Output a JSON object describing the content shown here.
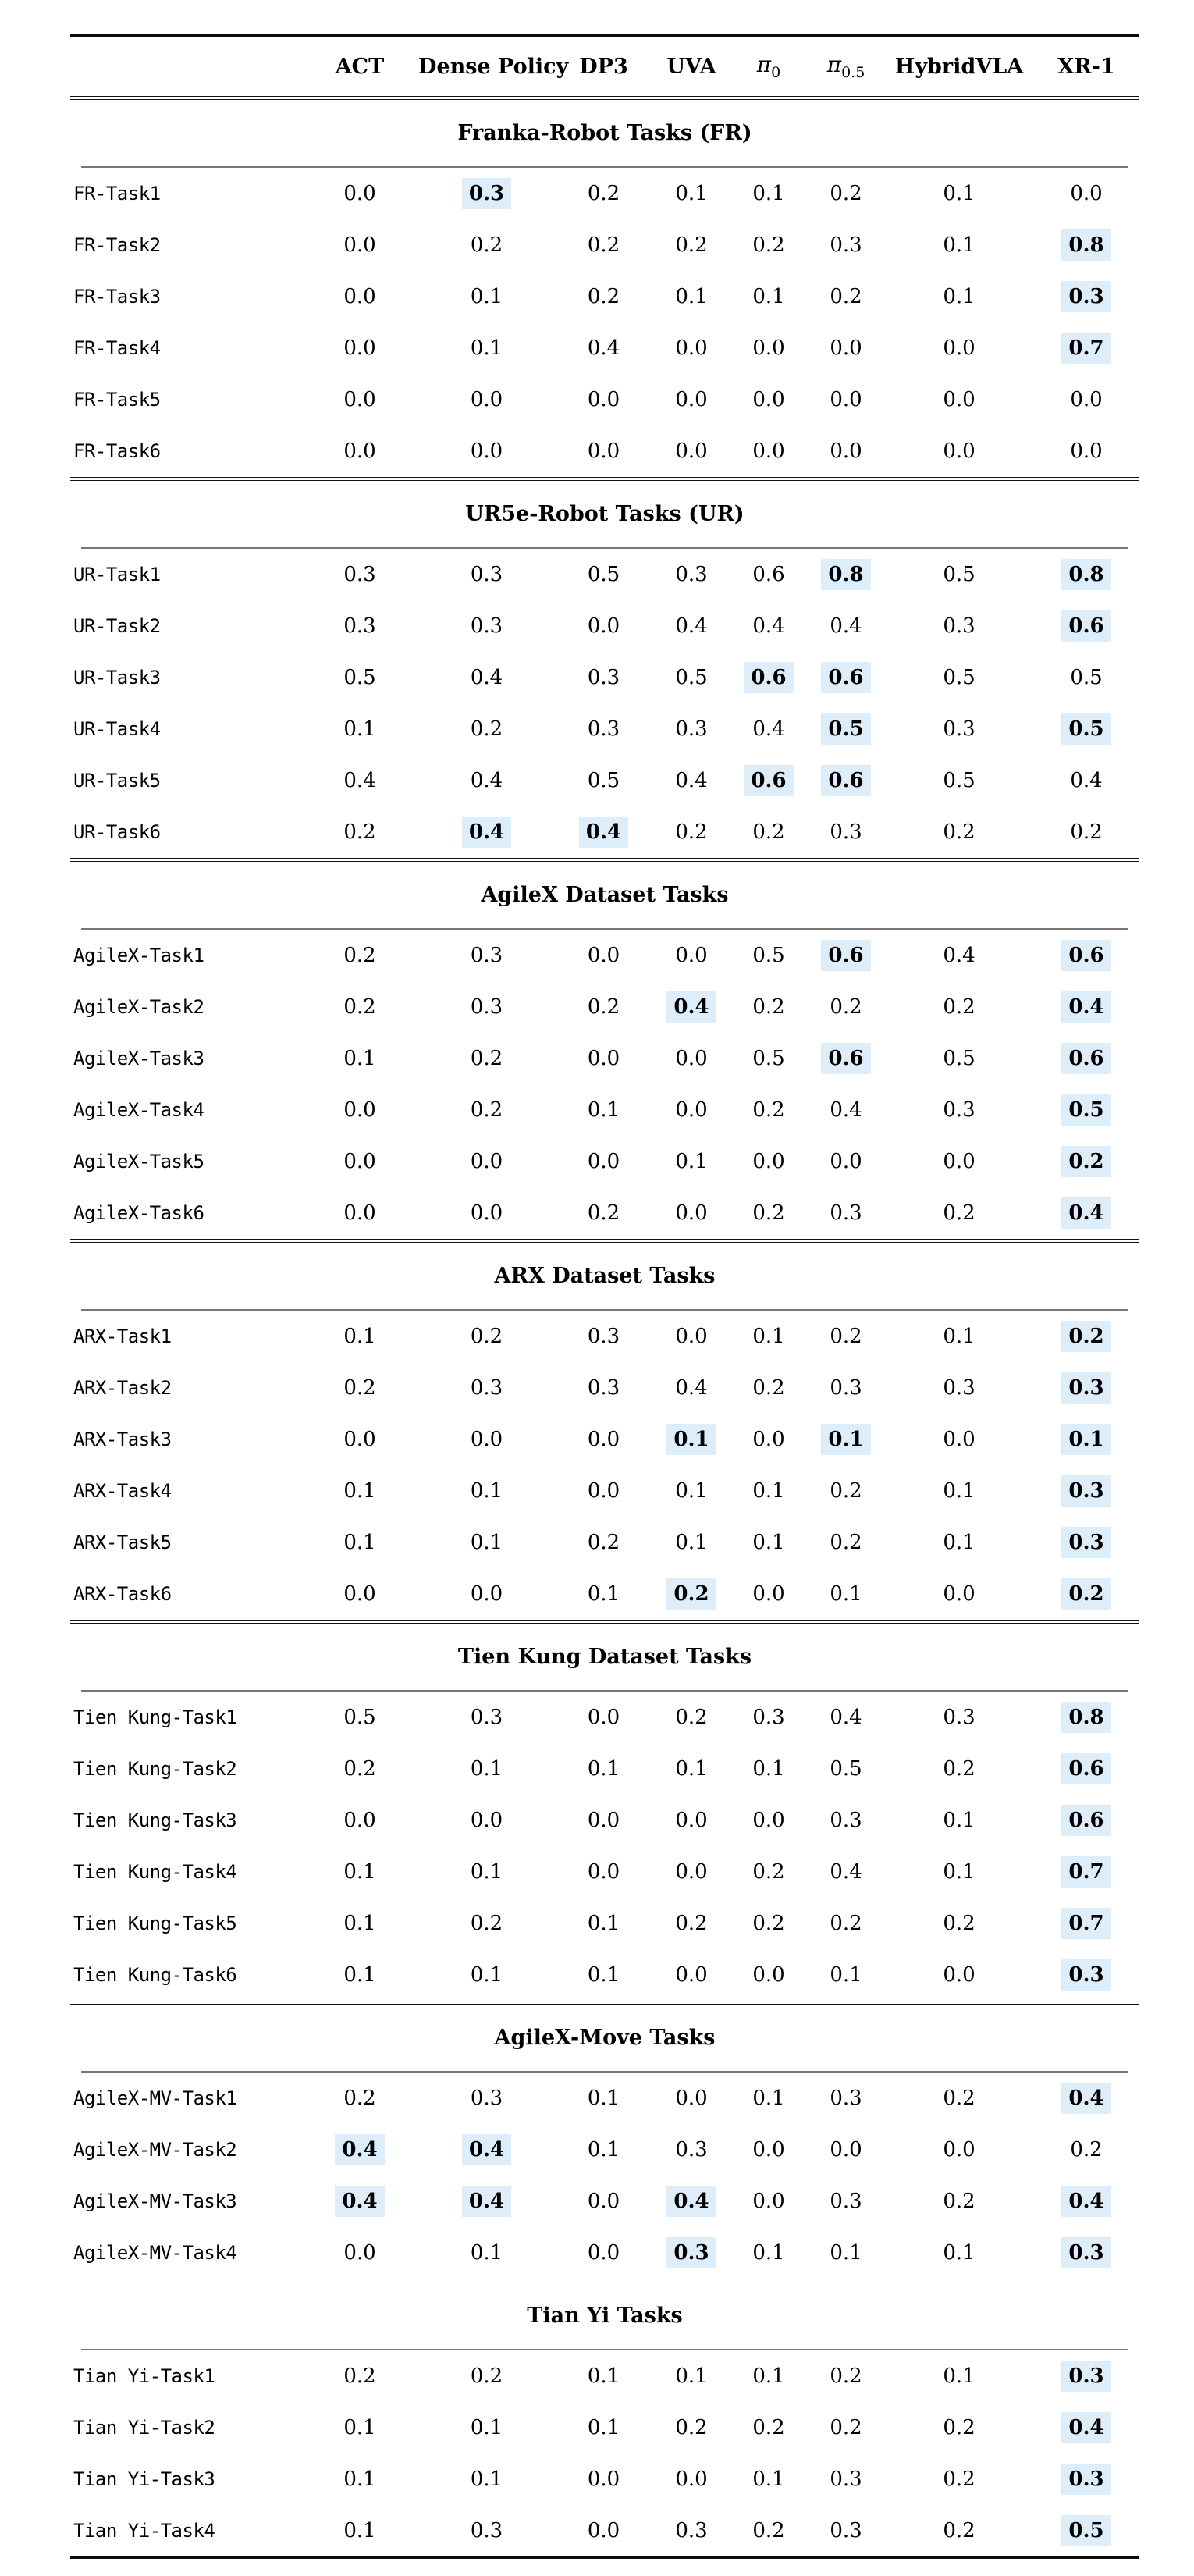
{
  "table": {
    "highlight_color": "#ddeefa",
    "header": {
      "row_label_col": "",
      "columns": [
        {
          "label": "ACT"
        },
        {
          "label": "Dense Policy"
        },
        {
          "label": "DP3"
        },
        {
          "label": "UVA"
        },
        {
          "label": "π",
          "sub": "0"
        },
        {
          "label": "π",
          "sub": "0.5"
        },
        {
          "label": "HybridVLA"
        },
        {
          "label": "XR-1"
        }
      ]
    },
    "sections": [
      {
        "title": "Franka-Robot Tasks (FR)",
        "rows": [
          {
            "task": "FR-Task1",
            "values": [
              "0.0",
              "0.3",
              "0.2",
              "0.1",
              "0.1",
              "0.2",
              "0.1",
              "0.0"
            ],
            "highlights": [
              1
            ]
          },
          {
            "task": "FR-Task2",
            "values": [
              "0.0",
              "0.2",
              "0.2",
              "0.2",
              "0.2",
              "0.3",
              "0.1",
              "0.8"
            ],
            "highlights": [
              7
            ]
          },
          {
            "task": "FR-Task3",
            "values": [
              "0.0",
              "0.1",
              "0.2",
              "0.1",
              "0.1",
              "0.2",
              "0.1",
              "0.3"
            ],
            "highlights": [
              7
            ]
          },
          {
            "task": "FR-Task4",
            "values": [
              "0.0",
              "0.1",
              "0.4",
              "0.0",
              "0.0",
              "0.0",
              "0.0",
              "0.7"
            ],
            "highlights": [
              7
            ]
          },
          {
            "task": "FR-Task5",
            "values": [
              "0.0",
              "0.0",
              "0.0",
              "0.0",
              "0.0",
              "0.0",
              "0.0",
              "0.0"
            ],
            "highlights": []
          },
          {
            "task": "FR-Task6",
            "values": [
              "0.0",
              "0.0",
              "0.0",
              "0.0",
              "0.0",
              "0.0",
              "0.0",
              "0.0"
            ],
            "highlights": []
          }
        ]
      },
      {
        "title": "UR5e-Robot Tasks (UR)",
        "rows": [
          {
            "task": "UR-Task1",
            "values": [
              "0.3",
              "0.3",
              "0.5",
              "0.3",
              "0.6",
              "0.8",
              "0.5",
              "0.8"
            ],
            "highlights": [
              5,
              7
            ]
          },
          {
            "task": "UR-Task2",
            "values": [
              "0.3",
              "0.3",
              "0.0",
              "0.4",
              "0.4",
              "0.4",
              "0.3",
              "0.6"
            ],
            "highlights": [
              7
            ]
          },
          {
            "task": "UR-Task3",
            "values": [
              "0.5",
              "0.4",
              "0.3",
              "0.5",
              "0.6",
              "0.6",
              "0.5",
              "0.5"
            ],
            "highlights": [
              4,
              5
            ]
          },
          {
            "task": "UR-Task4",
            "values": [
              "0.1",
              "0.2",
              "0.3",
              "0.3",
              "0.4",
              "0.5",
              "0.3",
              "0.5"
            ],
            "highlights": [
              5,
              7
            ]
          },
          {
            "task": "UR-Task5",
            "values": [
              "0.4",
              "0.4",
              "0.5",
              "0.4",
              "0.6",
              "0.6",
              "0.5",
              "0.4"
            ],
            "highlights": [
              4,
              5
            ]
          },
          {
            "task": "UR-Task6",
            "values": [
              "0.2",
              "0.4",
              "0.4",
              "0.2",
              "0.2",
              "0.3",
              "0.2",
              "0.2"
            ],
            "highlights": [
              1,
              2
            ]
          }
        ]
      },
      {
        "title": "AgileX Dataset Tasks",
        "rows": [
          {
            "task": "AgileX-Task1",
            "values": [
              "0.2",
              "0.3",
              "0.0",
              "0.0",
              "0.5",
              "0.6",
              "0.4",
              "0.6"
            ],
            "highlights": [
              5,
              7
            ]
          },
          {
            "task": "AgileX-Task2",
            "values": [
              "0.2",
              "0.3",
              "0.2",
              "0.4",
              "0.2",
              "0.2",
              "0.2",
              "0.4"
            ],
            "highlights": [
              3,
              7
            ]
          },
          {
            "task": "AgileX-Task3",
            "values": [
              "0.1",
              "0.2",
              "0.0",
              "0.0",
              "0.5",
              "0.6",
              "0.5",
              "0.6"
            ],
            "highlights": [
              5,
              7
            ]
          },
          {
            "task": "AgileX-Task4",
            "values": [
              "0.0",
              "0.2",
              "0.1",
              "0.0",
              "0.2",
              "0.4",
              "0.3",
              "0.5"
            ],
            "highlights": [
              7
            ]
          },
          {
            "task": "AgileX-Task5",
            "values": [
              "0.0",
              "0.0",
              "0.0",
              "0.1",
              "0.0",
              "0.0",
              "0.0",
              "0.2"
            ],
            "highlights": [
              7
            ]
          },
          {
            "task": "AgileX-Task6",
            "values": [
              "0.0",
              "0.0",
              "0.2",
              "0.0",
              "0.2",
              "0.3",
              "0.2",
              "0.4"
            ],
            "highlights": [
              7
            ]
          }
        ]
      },
      {
        "title": "ARX Dataset Tasks",
        "rows": [
          {
            "task": "ARX-Task1",
            "values": [
              "0.1",
              "0.2",
              "0.3",
              "0.0",
              "0.1",
              "0.2",
              "0.1",
              "0.2"
            ],
            "highlights": [
              7
            ]
          },
          {
            "task": "ARX-Task2",
            "values": [
              "0.2",
              "0.3",
              "0.3",
              "0.4",
              "0.2",
              "0.3",
              "0.3",
              "0.3"
            ],
            "highlights": [
              7
            ]
          },
          {
            "task": "ARX-Task3",
            "values": [
              "0.0",
              "0.0",
              "0.0",
              "0.1",
              "0.0",
              "0.1",
              "0.0",
              "0.1"
            ],
            "highlights": [
              3,
              5,
              7
            ]
          },
          {
            "task": "ARX-Task4",
            "values": [
              "0.1",
              "0.1",
              "0.0",
              "0.1",
              "0.1",
              "0.2",
              "0.1",
              "0.3"
            ],
            "highlights": [
              7
            ]
          },
          {
            "task": "ARX-Task5",
            "values": [
              "0.1",
              "0.1",
              "0.2",
              "0.1",
              "0.1",
              "0.2",
              "0.1",
              "0.3"
            ],
            "highlights": [
              7
            ]
          },
          {
            "task": "ARX-Task6",
            "values": [
              "0.0",
              "0.0",
              "0.1",
              "0.2",
              "0.0",
              "0.1",
              "0.0",
              "0.2"
            ],
            "highlights": [
              3,
              7
            ]
          }
        ]
      },
      {
        "title": "Tien Kung Dataset Tasks",
        "rows": [
          {
            "task": "Tien Kung-Task1",
            "values": [
              "0.5",
              "0.3",
              "0.0",
              "0.2",
              "0.3",
              "0.4",
              "0.3",
              "0.8"
            ],
            "highlights": [
              7
            ]
          },
          {
            "task": "Tien Kung-Task2",
            "values": [
              "0.2",
              "0.1",
              "0.1",
              "0.1",
              "0.1",
              "0.5",
              "0.2",
              "0.6"
            ],
            "highlights": [
              7
            ]
          },
          {
            "task": "Tien Kung-Task3",
            "values": [
              "0.0",
              "0.0",
              "0.0",
              "0.0",
              "0.0",
              "0.3",
              "0.1",
              "0.6"
            ],
            "highlights": [
              7
            ]
          },
          {
            "task": "Tien Kung-Task4",
            "values": [
              "0.1",
              "0.1",
              "0.0",
              "0.0",
              "0.2",
              "0.4",
              "0.1",
              "0.7"
            ],
            "highlights": [
              7
            ]
          },
          {
            "task": "Tien Kung-Task5",
            "values": [
              "0.1",
              "0.2",
              "0.1",
              "0.2",
              "0.2",
              "0.2",
              "0.2",
              "0.7"
            ],
            "highlights": [
              7
            ]
          },
          {
            "task": "Tien Kung-Task6",
            "values": [
              "0.1",
              "0.1",
              "0.1",
              "0.0",
              "0.0",
              "0.1",
              "0.0",
              "0.3"
            ],
            "highlights": [
              7
            ]
          }
        ]
      },
      {
        "title": "AgileX-Move Tasks",
        "rows": [
          {
            "task": "AgileX-MV-Task1",
            "values": [
              "0.2",
              "0.3",
              "0.1",
              "0.0",
              "0.1",
              "0.3",
              "0.2",
              "0.4"
            ],
            "highlights": [
              7
            ]
          },
          {
            "task": "AgileX-MV-Task2",
            "values": [
              "0.4",
              "0.4",
              "0.1",
              "0.3",
              "0.0",
              "0.0",
              "0.0",
              "0.2"
            ],
            "highlights": [
              0,
              1
            ]
          },
          {
            "task": "AgileX-MV-Task3",
            "values": [
              "0.4",
              "0.4",
              "0.0",
              "0.4",
              "0.0",
              "0.3",
              "0.2",
              "0.4"
            ],
            "highlights": [
              0,
              1,
              3,
              7
            ]
          },
          {
            "task": "AgileX-MV-Task4",
            "values": [
              "0.0",
              "0.1",
              "0.0",
              "0.3",
              "0.1",
              "0.1",
              "0.1",
              "0.3"
            ],
            "highlights": [
              3,
              7
            ]
          }
        ]
      },
      {
        "title": "Tian Yi Tasks",
        "rows": [
          {
            "task": "Tian Yi-Task1",
            "values": [
              "0.2",
              "0.2",
              "0.1",
              "0.1",
              "0.1",
              "0.2",
              "0.1",
              "0.3"
            ],
            "highlights": [
              7
            ]
          },
          {
            "task": "Tian Yi-Task2",
            "values": [
              "0.1",
              "0.1",
              "0.1",
              "0.2",
              "0.2",
              "0.2",
              "0.2",
              "0.4"
            ],
            "highlights": [
              7
            ]
          },
          {
            "task": "Tian Yi-Task3",
            "values": [
              "0.1",
              "0.1",
              "0.0",
              "0.0",
              "0.1",
              "0.3",
              "0.2",
              "0.3"
            ],
            "highlights": [
              7
            ]
          },
          {
            "task": "Tian Yi-Task4",
            "values": [
              "0.1",
              "0.3",
              "0.0",
              "0.3",
              "0.2",
              "0.3",
              "0.2",
              "0.5"
            ],
            "highlights": [
              7
            ]
          }
        ]
      }
    ]
  }
}
